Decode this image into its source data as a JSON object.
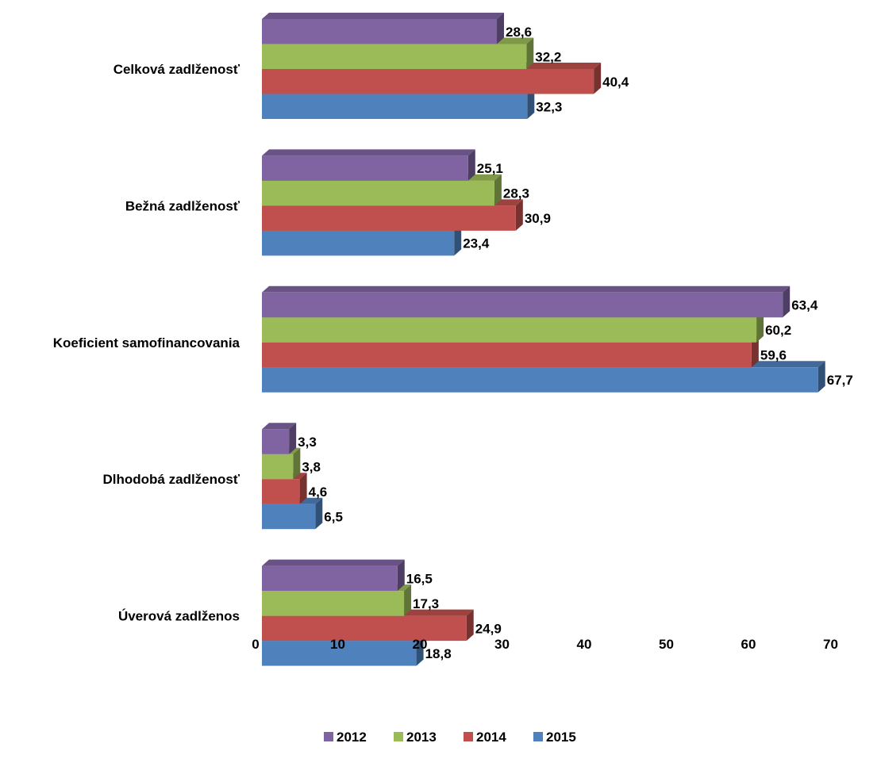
{
  "chart_data": {
    "type": "bar",
    "orientation": "horizontal",
    "style": "3d-clustered",
    "title": "",
    "xlabel": "",
    "ylabel": "",
    "xlim": [
      0,
      70
    ],
    "x_ticks": [
      0,
      10,
      20,
      30,
      40,
      50,
      60,
      70
    ],
    "grid": false,
    "legend_position": "bottom",
    "categories": [
      "Celková zadlženosť",
      "Bežná zadlženosť",
      "Koeficient samofinancovania",
      "Dlhodobá zadlženosť",
      "Úverová zadlženos"
    ],
    "series": [
      {
        "name": "2012",
        "color": "#8064A2",
        "values": [
          28.6,
          25.1,
          63.4,
          3.3,
          16.5
        ],
        "labels": [
          "28,6",
          "25,1",
          "63,4",
          "3,3",
          "16,5"
        ]
      },
      {
        "name": "2013",
        "color": "#9BBB59",
        "values": [
          32.2,
          28.3,
          60.2,
          3.8,
          17.3
        ],
        "labels": [
          "32,2",
          "28,3",
          "60,2",
          "3,8",
          "17,3"
        ]
      },
      {
        "name": "2014",
        "color": "#C0504D",
        "values": [
          40.4,
          30.9,
          59.6,
          4.6,
          24.9
        ],
        "labels": [
          "40,4",
          "30,9",
          "59,6",
          "4,6",
          "24,9"
        ]
      },
      {
        "name": "2015",
        "color": "#4F81BD",
        "values": [
          32.3,
          23.4,
          67.7,
          6.5,
          18.8
        ],
        "labels": [
          "32,3",
          "23,4",
          "67,7",
          "6,5",
          "18,8"
        ]
      }
    ]
  }
}
